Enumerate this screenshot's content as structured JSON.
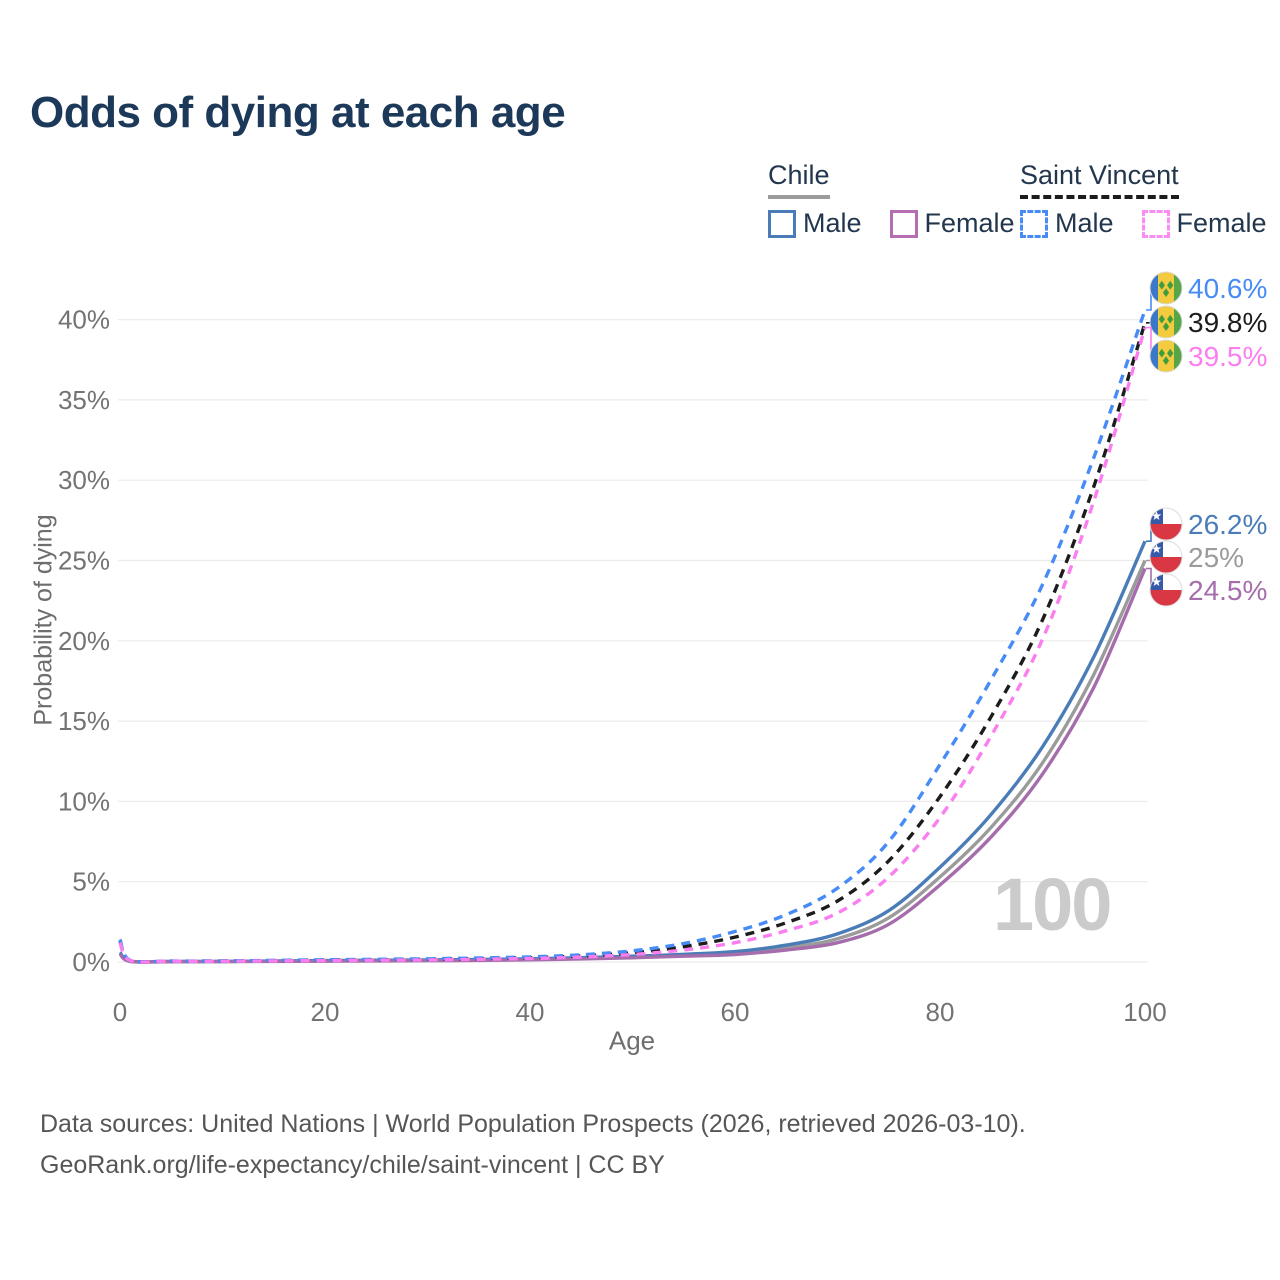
{
  "title": "Odds of dying at each age",
  "watermark": "100",
  "legend": {
    "groups": [
      {
        "label": "Chile",
        "line_style": "solid",
        "line_color": "#9b9b9b",
        "items": [
          {
            "label": "Male",
            "color": "#4a7cb8",
            "dashed": false
          },
          {
            "label": "Female",
            "color": "#b36fb2",
            "dashed": false
          }
        ]
      },
      {
        "label": "Saint Vincent",
        "line_style": "dashed",
        "line_color": "#1c1c1c",
        "items": [
          {
            "label": "Male",
            "color": "#478bf7",
            "dashed": true
          },
          {
            "label": "Female",
            "color": "#fc8cf5",
            "dashed": true
          }
        ]
      }
    ]
  },
  "chart_data": {
    "type": "line",
    "title": "Odds of dying at each age",
    "xlabel": "Age",
    "ylabel": "Probability of dying",
    "xlim": [
      0,
      100
    ],
    "ylim": [
      0,
      42
    ],
    "x_ticks": [
      0,
      20,
      40,
      60,
      80,
      100
    ],
    "y_ticks": [
      0,
      5,
      10,
      15,
      20,
      25,
      30,
      35,
      40
    ],
    "y_tick_suffix": "%",
    "grid": "horizontal",
    "legend_position": "top-right",
    "ages": [
      0,
      1,
      5,
      10,
      15,
      20,
      25,
      30,
      35,
      40,
      45,
      50,
      55,
      60,
      65,
      70,
      75,
      80,
      85,
      90,
      95,
      100
    ],
    "series": [
      {
        "name": "Chile Total",
        "country": "Chile",
        "sex": "total",
        "flag": "chile",
        "color": "#9b9b9b",
        "dashed": false,
        "end_label": "25%",
        "end_value": 25.0,
        "values": [
          0.55,
          0.04,
          0.03,
          0.03,
          0.05,
          0.07,
          0.09,
          0.11,
          0.13,
          0.17,
          0.23,
          0.31,
          0.42,
          0.55,
          0.88,
          1.45,
          2.75,
          5.3,
          8.4,
          12.4,
          17.9,
          25.0
        ]
      },
      {
        "name": "Chile Male",
        "country": "Chile",
        "sex": "male",
        "flag": "chile",
        "color": "#4a7cb8",
        "dashed": false,
        "end_label": "26.2%",
        "end_value": 26.2,
        "values": [
          0.6,
          0.05,
          0.03,
          0.04,
          0.06,
          0.09,
          0.11,
          0.13,
          0.16,
          0.2,
          0.27,
          0.36,
          0.48,
          0.65,
          1.05,
          1.75,
          3.2,
          5.9,
          9.2,
          13.4,
          19.0,
          26.2
        ]
      },
      {
        "name": "Chile Female",
        "country": "Chile",
        "sex": "female",
        "flag": "chile",
        "color": "#a56dab",
        "dashed": false,
        "end_label": "24.5%",
        "end_value": 24.5,
        "values": [
          0.5,
          0.04,
          0.02,
          0.03,
          0.04,
          0.05,
          0.07,
          0.08,
          0.1,
          0.14,
          0.19,
          0.26,
          0.36,
          0.47,
          0.75,
          1.2,
          2.35,
          4.8,
          7.8,
          11.7,
          17.1,
          24.5
        ]
      },
      {
        "name": "Saint Vincent Total",
        "country": "Saint Vincent",
        "sex": "total",
        "flag": "saint-vincent",
        "color": "#1c1c1c",
        "dashed": true,
        "end_label": "39.8%",
        "end_value": 39.8,
        "values": [
          1.3,
          0.09,
          0.05,
          0.06,
          0.09,
          0.12,
          0.14,
          0.17,
          0.21,
          0.27,
          0.38,
          0.58,
          0.95,
          1.55,
          2.45,
          3.8,
          6.3,
          10.3,
          15.3,
          21.3,
          29.6,
          39.8
        ]
      },
      {
        "name": "Saint Vincent Male",
        "country": "Saint Vincent",
        "sex": "male",
        "flag": "saint-vincent",
        "color": "#478bf7",
        "dashed": true,
        "end_label": "40.6%",
        "end_value": 40.6,
        "values": [
          1.4,
          0.1,
          0.06,
          0.07,
          0.1,
          0.14,
          0.17,
          0.2,
          0.25,
          0.32,
          0.45,
          0.7,
          1.15,
          1.9,
          2.95,
          4.6,
          7.5,
          12.3,
          17.6,
          23.5,
          31.4,
          40.6
        ]
      },
      {
        "name": "Saint Vincent Female",
        "country": "Saint Vincent",
        "sex": "female",
        "flag": "saint-vincent",
        "color": "#fb7ef0",
        "dashed": true,
        "end_label": "39.5%",
        "end_value": 39.5,
        "values": [
          1.2,
          0.08,
          0.05,
          0.05,
          0.07,
          0.09,
          0.11,
          0.13,
          0.17,
          0.22,
          0.31,
          0.47,
          0.75,
          1.2,
          1.95,
          3.05,
          5.3,
          9.0,
          14.1,
          20.1,
          28.7,
          39.5
        ]
      }
    ]
  },
  "footer": {
    "line1": "Data sources: United Nations | World Population Prospects (2026, retrieved 2026-03-10).",
    "line2": "GeoRank.org/life-expectancy/chile/saint-vincent | CC BY"
  }
}
